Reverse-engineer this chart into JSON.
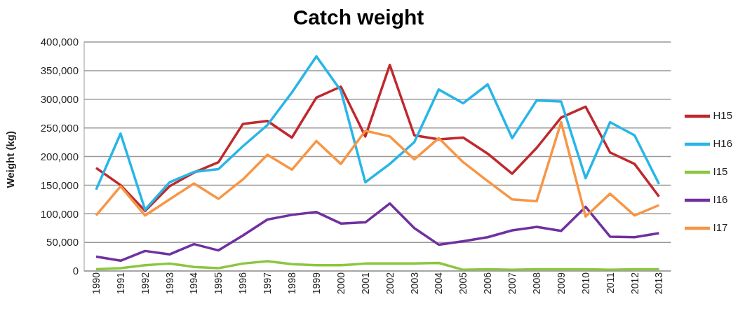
{
  "chart_data": {
    "type": "line",
    "title": "Catch weight",
    "ylabel": "Weight (kg)",
    "categories": [
      "1990",
      "1991",
      "1992",
      "1993",
      "1994",
      "1995",
      "1996",
      "1997",
      "1998",
      "1999",
      "2000",
      "2001",
      "2002",
      "2003",
      "2004",
      "2005",
      "2006",
      "2007",
      "2008",
      "2009",
      "2010",
      "2011",
      "2012",
      "2013"
    ],
    "series": [
      {
        "name": "H15",
        "color": "#c0282d",
        "values": [
          180000,
          150000,
          105000,
          148000,
          172000,
          190000,
          257000,
          262000,
          233000,
          303000,
          322000,
          235000,
          360000,
          237000,
          230000,
          233000,
          205000,
          170000,
          215000,
          268000,
          287000,
          207000,
          187000,
          130000
        ]
      },
      {
        "name": "H16",
        "color": "#29b5e8",
        "values": [
          142000,
          240000,
          107000,
          155000,
          173000,
          178000,
          218000,
          255000,
          312000,
          375000,
          315000,
          155000,
          187000,
          225000,
          317000,
          293000,
          326000,
          232000,
          298000,
          296000,
          162000,
          260000,
          237000,
          152000
        ]
      },
      {
        "name": "I15",
        "color": "#8cc63f",
        "values": [
          3000,
          5000,
          10000,
          13000,
          7000,
          5000,
          13000,
          17000,
          12000,
          10000,
          10000,
          13000,
          13000,
          13000,
          14000,
          2000,
          3000,
          2000,
          3000,
          3000,
          3000,
          2000,
          3000,
          3000
        ]
      },
      {
        "name": "I16",
        "color": "#7030a0",
        "values": [
          25000,
          18000,
          35000,
          29000,
          47000,
          36000,
          62000,
          90000,
          98000,
          103000,
          83000,
          85000,
          118000,
          75000,
          46000,
          52000,
          59000,
          71000,
          77000,
          70000,
          112000,
          60000,
          59000,
          66000
        ]
      },
      {
        "name": "I17",
        "color": "#f79646",
        "values": [
          97000,
          148000,
          97000,
          125000,
          153000,
          126000,
          160000,
          203000,
          177000,
          227000,
          187000,
          245000,
          235000,
          195000,
          232000,
          190000,
          157000,
          125000,
          122000,
          260000,
          95000,
          135000,
          97000,
          115000
        ]
      }
    ],
    "ylim": [
      0,
      400000
    ],
    "yticks": [
      0,
      {
        "value": 50000,
        "label": "50,000"
      },
      {
        "value": 100000,
        "label": "100,000"
      },
      {
        "value": 150000,
        "label": "150,000"
      },
      {
        "value": 200000,
        "label": "200,000"
      },
      {
        "value": 250000,
        "label": "250,000"
      },
      {
        "value": 300000,
        "label": "300,000"
      },
      {
        "value": 350000,
        "label": "350,000"
      },
      {
        "value": 400000,
        "label": "400,000"
      }
    ],
    "grid": "y",
    "legend": "right",
    "marker": "none",
    "line_style": "solid"
  }
}
